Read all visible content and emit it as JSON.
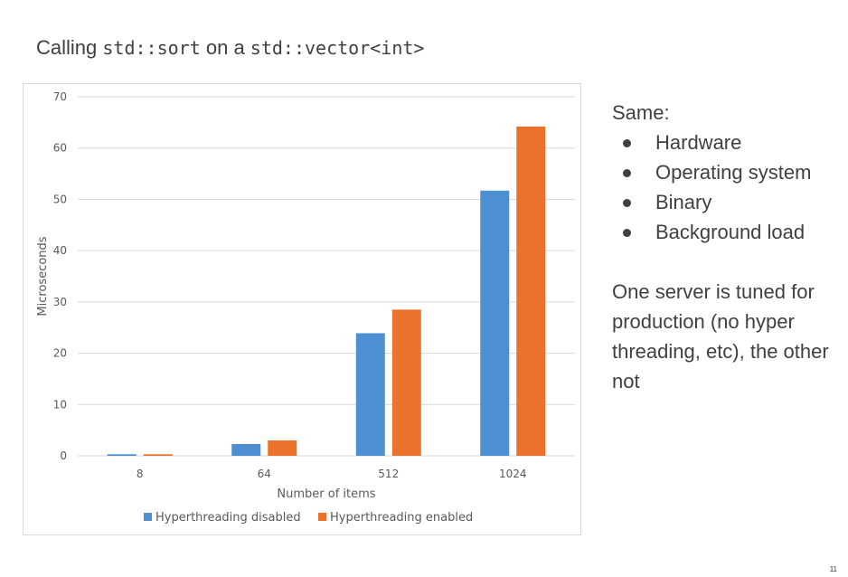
{
  "slide": {
    "title_pre": "Calling ",
    "title_code1": "std::sort",
    "title_mid": " on a ",
    "title_code2": "std::vector<int>",
    "same_label": "Same:",
    "bullets": [
      "Hardware",
      "Operating system",
      "Binary",
      "Background load"
    ],
    "note": "One server is tuned for production (no hyper threading, etc), the other not",
    "page_number": "11"
  },
  "chart_data": {
    "type": "bar",
    "categories": [
      "8",
      "64",
      "512",
      "1024"
    ],
    "series": [
      {
        "name": "Hyperthreading disabled",
        "color": "#4e8fd1",
        "values": [
          0.3,
          2.3,
          23.9,
          51.7
        ]
      },
      {
        "name": "Hyperthreading enabled",
        "color": "#ea722b",
        "values": [
          0.3,
          3.0,
          28.5,
          64.2
        ]
      }
    ],
    "xlabel": "Number of items",
    "ylabel": "Microseconds",
    "ylim": [
      0,
      70
    ],
    "yticks": [
      0,
      10,
      20,
      30,
      40,
      50,
      60,
      70
    ],
    "grid": true,
    "legend": "bottom"
  }
}
